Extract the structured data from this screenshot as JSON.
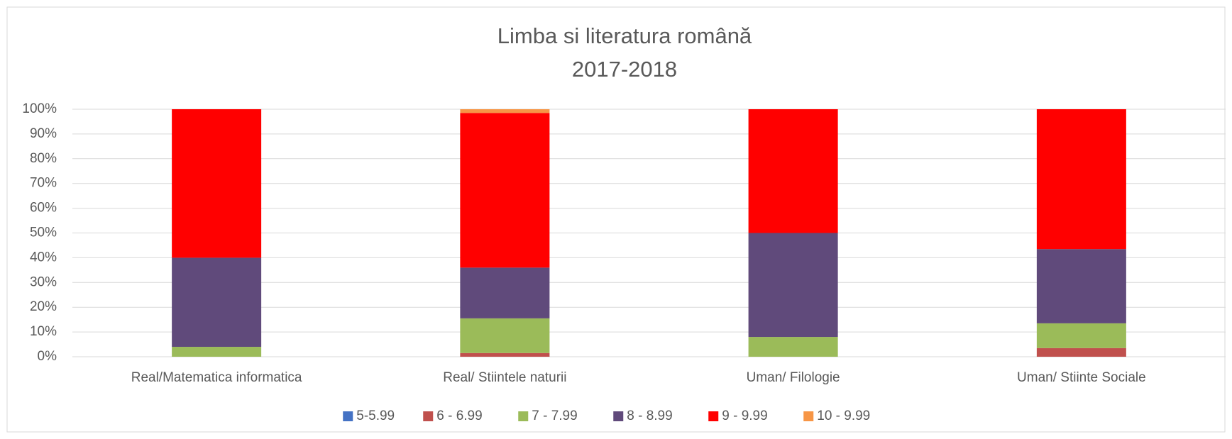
{
  "chart_data": {
    "type": "stacked_bar_percent",
    "title": "Limba si literatura română",
    "subtitle": "2017-2018",
    "categories": [
      "Real/Matematica informatica",
      "Real/ Stiintele naturii",
      "Uman/ Filologie",
      "Uman/ Stiinte Sociale"
    ],
    "series": [
      {
        "name": "5-5.99",
        "color": "#4472c4",
        "values": [
          0,
          0,
          0,
          0
        ]
      },
      {
        "name": "6 - 6.99",
        "color": "#c0504d",
        "values": [
          0,
          1.5,
          0,
          3.5
        ]
      },
      {
        "name": "7 - 7.99",
        "color": "#9bbb59",
        "values": [
          4,
          14,
          8,
          10
        ]
      },
      {
        "name": "8 - 8.99",
        "color": "#604a7b",
        "values": [
          36,
          20.5,
          42,
          30
        ]
      },
      {
        "name": "9 - 9.99",
        "color": "#ff0000",
        "values": [
          60,
          62.5,
          50,
          56.5
        ]
      },
      {
        "name": "10 - 9.99",
        "color": "#f79646",
        "values": [
          0,
          1.5,
          0,
          0
        ]
      }
    ],
    "ylim": [
      0,
      100
    ],
    "yticks": [
      {
        "value": 0,
        "label": "0%"
      },
      {
        "value": 10,
        "label": "10%"
      },
      {
        "value": 20,
        "label": "20%"
      },
      {
        "value": 30,
        "label": "30%"
      },
      {
        "value": 40,
        "label": "40%"
      },
      {
        "value": 50,
        "label": "50%"
      },
      {
        "value": 60,
        "label": "60%"
      },
      {
        "value": 70,
        "label": "70%"
      },
      {
        "value": 80,
        "label": "80%"
      },
      {
        "value": 90,
        "label": "90%"
      },
      {
        "value": 100,
        "label": "100%"
      }
    ],
    "grid": true,
    "legend": "bottom"
  }
}
